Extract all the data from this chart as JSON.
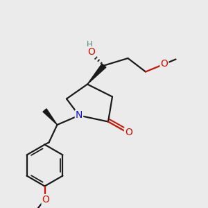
{
  "bg_color": "#ebebeb",
  "bond_color": "#1a1a1a",
  "O_color": "#cc1100",
  "N_color": "#1111cc",
  "bond_width": 1.6,
  "figsize": [
    3.0,
    3.0
  ],
  "dpi": 100,
  "xlim": [
    0,
    1
  ],
  "ylim": [
    0,
    1
  ],
  "font_size": 9
}
